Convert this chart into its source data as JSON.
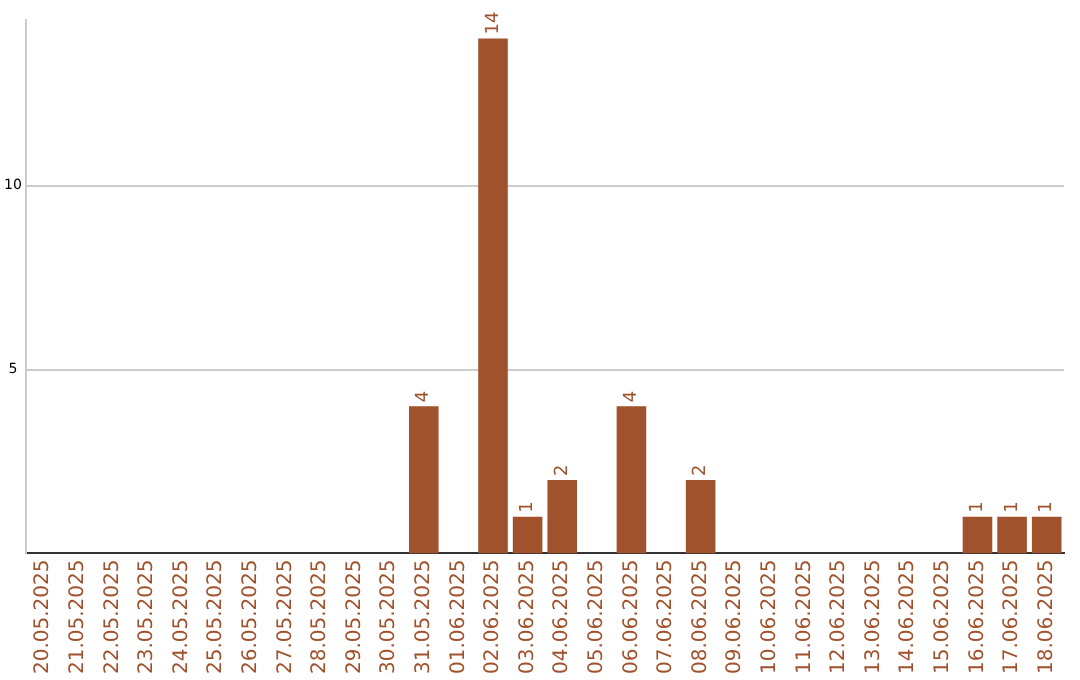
{
  "chart_data": {
    "type": "bar",
    "categories": [
      "20.05.2025",
      "21.05.2025",
      "22.05.2025",
      "23.05.2025",
      "24.05.2025",
      "25.05.2025",
      "26.05.2025",
      "27.05.2025",
      "28.05.2025",
      "29.05.2025",
      "30.05.2025",
      "31.05.2025",
      "01.06.2025",
      "02.06.2025",
      "03.06.2025",
      "04.06.2025",
      "05.06.2025",
      "06.06.2025",
      "07.06.2025",
      "08.06.2025",
      "09.06.2025",
      "10.06.2025",
      "11.06.2025",
      "12.06.2025",
      "13.06.2025",
      "14.06.2025",
      "15.06.2025",
      "16.06.2025",
      "17.06.2025",
      "18.06.2025"
    ],
    "values": [
      0,
      0,
      0,
      0,
      0,
      0,
      0,
      0,
      0,
      0,
      0,
      4,
      0,
      14,
      1,
      2,
      0,
      4,
      0,
      2,
      0,
      0,
      0,
      0,
      0,
      0,
      0,
      1,
      1,
      1
    ],
    "value_labels": [
      null,
      null,
      null,
      null,
      null,
      null,
      null,
      null,
      null,
      null,
      null,
      "4",
      null,
      "14",
      "1",
      "2",
      null,
      "4",
      null,
      "2",
      null,
      null,
      null,
      null,
      null,
      null,
      null,
      "1",
      "1",
      "1"
    ],
    "color": "#a0522d",
    "ylim": [
      0,
      14.5
    ],
    "yticks": [
      5,
      10
    ],
    "grid": "y",
    "legend": false
  }
}
